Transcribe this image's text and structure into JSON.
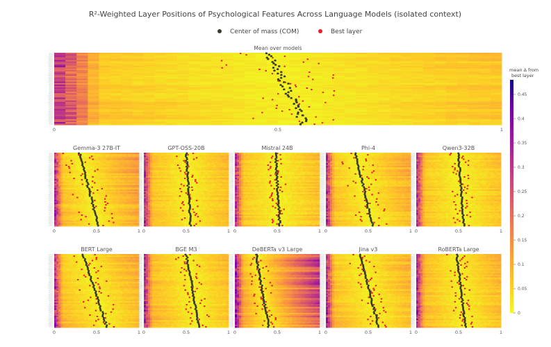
{
  "title": "R²-Weighted Layer Positions of Psychological Features Across Language Models (isolated context)",
  "legend": {
    "items": [
      {
        "label": "Center of mass (COM)",
        "color": "#3b3b30"
      },
      {
        "label": "Best layer",
        "color": "#e8202a"
      }
    ]
  },
  "colorbar": {
    "title_line1": "mean Δ from",
    "title_line2": "best layer",
    "ticks": [
      "0.45",
      "0.4",
      "0.35",
      "0.3",
      "0.25",
      "0.2",
      "0.15",
      "0.1",
      "0.05",
      "0"
    ]
  },
  "chart_data": {
    "type": "heatmap",
    "x_label": "",
    "x_range": [
      0,
      1
    ],
    "x_ticks": [
      "0",
      "0.5",
      "1"
    ],
    "colorscale": "plasma (0 = yellow, 0.45+ = dark purple)",
    "color_range": [
      0,
      0.45
    ],
    "rows_per_panel": 50,
    "panels": [
      {
        "title": "Mean over models",
        "com_range": [
          0.48,
          0.56
        ],
        "best_spread": 0.12,
        "base": 0.08
      },
      {
        "title": "Gemma-3 27B-IT",
        "com_range": [
          0.3,
          0.52
        ],
        "best_spread": 0.2,
        "base": 0.12
      },
      {
        "title": "GPT-OSS-20B",
        "com_range": [
          0.5,
          0.55
        ],
        "best_spread": 0.12,
        "base": 0.09
      },
      {
        "title": "Mistral 24B",
        "com_range": [
          0.48,
          0.53
        ],
        "best_spread": 0.1,
        "base": 0.09
      },
      {
        "title": "Phi-4",
        "com_range": [
          0.35,
          0.55
        ],
        "best_spread": 0.18,
        "base": 0.1
      },
      {
        "title": "Qwen3-32B",
        "com_range": [
          0.5,
          0.56
        ],
        "best_spread": 0.12,
        "base": 0.09
      },
      {
        "title": "BERT Large",
        "com_range": [
          0.34,
          0.62
        ],
        "best_spread": 0.18,
        "base": 0.1
      },
      {
        "title": "BGE M3",
        "com_range": [
          0.5,
          0.65
        ],
        "best_spread": 0.15,
        "base": 0.1
      },
      {
        "title": "DeBERTa v3 Large",
        "com_range": [
          0.25,
          0.4
        ],
        "best_spread": 0.12,
        "base": 0.25
      },
      {
        "title": "Jina v3",
        "com_range": [
          0.4,
          0.62
        ],
        "best_spread": 0.15,
        "base": 0.1
      },
      {
        "title": "RoBERTa Large",
        "com_range": [
          0.48,
          0.58
        ],
        "best_spread": 0.12,
        "base": 0.1
      }
    ]
  }
}
